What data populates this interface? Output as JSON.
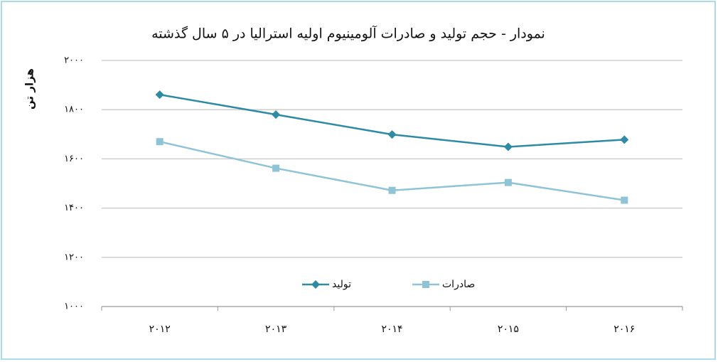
{
  "chart_data": {
    "type": "line",
    "title": "نمودار - حجم تولید و صادرات آلومینیوم اولیه استرالیا در ۵ سال گذشته",
    "y_label": "هزار تن",
    "categories": [
      "۲۰۱۲",
      "۲۰۱۳",
      "۲۰۱۴",
      "۲۰۱۵",
      "۲۰۱۶"
    ],
    "series": [
      {
        "name": "تولید",
        "color": "#2e8ba3",
        "marker": "diamond",
        "values": [
          1861,
          1780,
          1699,
          1649,
          1678
        ]
      },
      {
        "name": "صادرات",
        "color": "#8ec4d6",
        "marker": "square",
        "values": [
          1670,
          1562,
          1472,
          1504,
          1432
        ]
      }
    ],
    "ylim": [
      1000,
      2000
    ],
    "yticks": [
      {
        "value": 1000,
        "label": "۱۰۰۰"
      },
      {
        "value": 1200,
        "label": "۱۲۰۰"
      },
      {
        "value": 1400,
        "label": "۱۴۰۰"
      },
      {
        "value": 1600,
        "label": "۱۶۰۰"
      },
      {
        "value": 1800,
        "label": "۱۸۰۰"
      },
      {
        "value": 2000,
        "label": "۲۰۰۰"
      }
    ],
    "grid": true
  }
}
